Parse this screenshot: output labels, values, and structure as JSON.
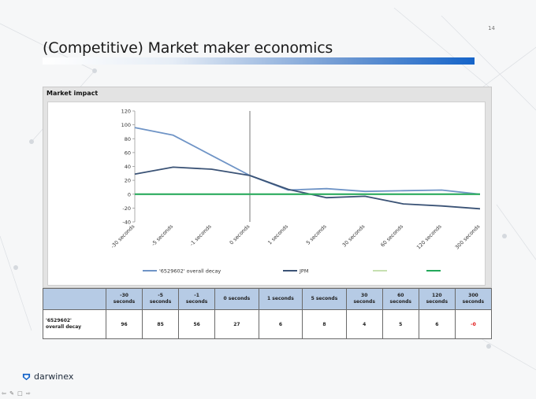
{
  "slide": {
    "number": "14",
    "title": "(Competitive) Market maker economics"
  },
  "panel": {
    "title": "Market impact"
  },
  "chart_data": {
    "type": "line",
    "categories": [
      "-30 seconds",
      "-5 seconds",
      "-1 seconds",
      "0 seconds",
      "1 seconds",
      "5 seconds",
      "30 seconds",
      "60 seconds",
      "120 seconds",
      "300 seconds"
    ],
    "series": [
      {
        "name": "'6529602' overall decay",
        "color": "#6f94c6",
        "values": [
          96,
          85,
          56,
          27,
          6,
          8,
          4,
          5,
          6,
          0
        ]
      },
      {
        "name": "JPM",
        "color": "#3b5376",
        "values": [
          29,
          39,
          36,
          27,
          7,
          -5,
          -3,
          -14,
          -17,
          -21
        ]
      },
      {
        "name": "",
        "color": "#c6e0b0",
        "values": [
          0,
          0,
          0,
          0,
          0,
          0,
          0,
          0,
          0,
          0
        ]
      },
      {
        "name": "",
        "color": "#23a85a",
        "values": [
          0,
          0,
          0,
          0,
          0,
          0,
          0,
          0,
          0,
          0
        ]
      }
    ],
    "y_ticks": [
      "120",
      "100",
      "80",
      "60",
      "40",
      "20",
      "0",
      "-20",
      "-40"
    ],
    "ylim": [
      -40,
      120
    ],
    "grid": false,
    "legend_position": "bottom"
  },
  "table": {
    "columns": [
      [
        "-30",
        "seconds"
      ],
      [
        "-5",
        "seconds"
      ],
      [
        "-1",
        "seconds"
      ],
      [
        "",
        "0 seconds"
      ],
      [
        "",
        "1 seconds"
      ],
      [
        "",
        "5 seconds"
      ],
      [
        "30",
        "seconds"
      ],
      [
        "60",
        "seconds"
      ],
      [
        "120",
        "seconds"
      ],
      [
        "300",
        "seconds"
      ]
    ],
    "row_label": [
      "'6529602'",
      "overall decay"
    ],
    "values": [
      "96",
      "85",
      "56",
      "27",
      "6",
      "8",
      "4",
      "5",
      "6",
      "-0"
    ]
  },
  "brand": {
    "name": "darwinex",
    "color": "#1e2a3a",
    "accent": "#1564c9"
  },
  "nav_glyphs": "⇦ ✎ □ ⇨"
}
